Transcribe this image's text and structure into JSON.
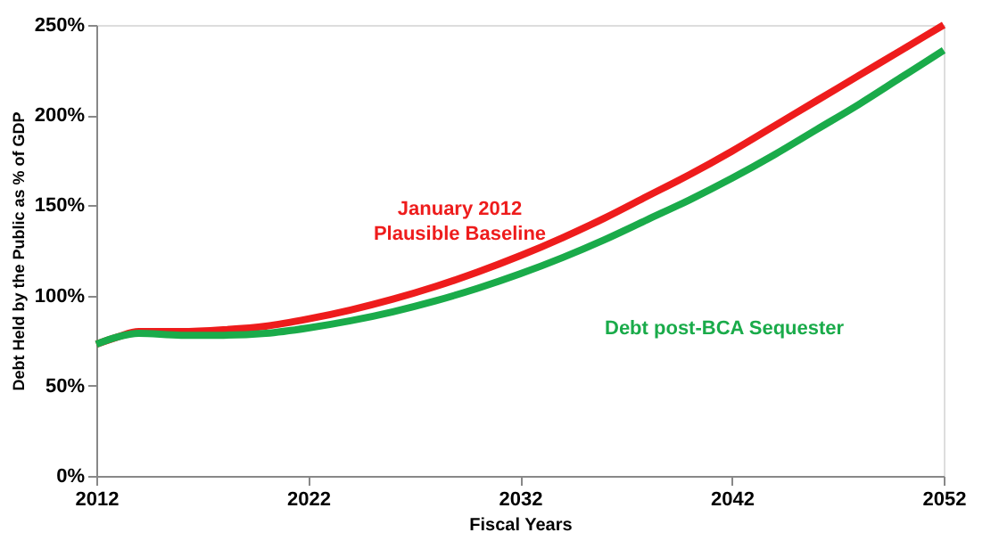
{
  "chart_data": {
    "type": "line",
    "xlabel": "Fiscal Years",
    "ylabel": "Debt Held by the Public as % of GDP",
    "x": [
      2012,
      2013,
      2014,
      2016,
      2018,
      2020,
      2022,
      2024,
      2026,
      2028,
      2030,
      2032,
      2034,
      2036,
      2038,
      2040,
      2042,
      2044,
      2046,
      2048,
      2050,
      2052
    ],
    "series": [
      {
        "name": "January 2012 Plausible Baseline",
        "color": "#ee1c1c",
        "values": [
          73,
          77,
          80,
          80,
          81,
          83,
          87,
          92,
          98,
          105,
          113,
          122,
          132,
          143,
          155,
          167,
          180,
          194,
          208,
          222,
          236,
          250
        ]
      },
      {
        "name": "Debt post-BCA Sequester",
        "color": "#1aab4a",
        "values": [
          73,
          77,
          79,
          78,
          78,
          79,
          82,
          86,
          91,
          97,
          104,
          112,
          121,
          131,
          142,
          153,
          165,
          178,
          192,
          206,
          221,
          236
        ]
      }
    ],
    "xlim": [
      2012,
      2052
    ],
    "xticks": [
      2012,
      2022,
      2032,
      2042,
      2052
    ],
    "ylim": [
      0,
      250
    ],
    "yticks": [
      {
        "value": 0,
        "label": "0%"
      },
      {
        "value": 50,
        "label": "50%"
      },
      {
        "value": 100,
        "label": "100%"
      },
      {
        "value": 150,
        "label": "150%"
      },
      {
        "value": 200,
        "label": "200%"
      },
      {
        "value": 250,
        "label": "250%"
      }
    ],
    "grid": false,
    "legend": false,
    "marker": "none",
    "line_style": "solid"
  }
}
